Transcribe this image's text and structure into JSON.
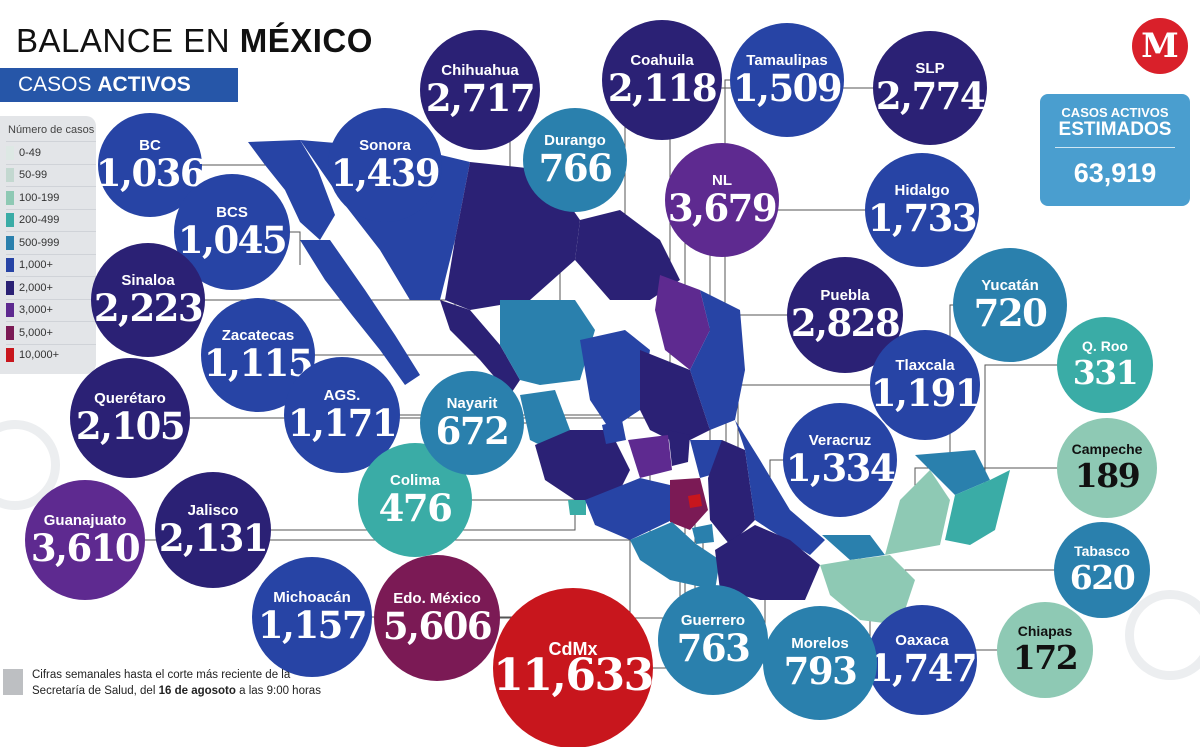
{
  "header": {
    "title_regular": "BALANCE EN ",
    "title_bold": "MÉXICO",
    "subtitle_regular": "CASOS ",
    "subtitle_bold": "ACTIVOS"
  },
  "legend": {
    "title": "Número de casos",
    "items": [
      {
        "label": "0-49",
        "color": "#dde8e4"
      },
      {
        "label": "50-99",
        "color": "#c3d8d0"
      },
      {
        "label": "100-199",
        "color": "#8ec9b4"
      },
      {
        "label": "200-499",
        "color": "#3aaca6"
      },
      {
        "label": "500-999",
        "color": "#2a80ad"
      },
      {
        "label": "1,000+",
        "color": "#2744a5"
      },
      {
        "label": "2,000+",
        "color": "#2b2175"
      },
      {
        "label": "3,000+",
        "color": "#5e2a90"
      },
      {
        "label": "5,000+",
        "color": "#7b1a55"
      },
      {
        "label": "10,000+",
        "color": "#c8161d"
      }
    ]
  },
  "logo": {
    "letter": "M",
    "color": "#d9202a"
  },
  "estimate": {
    "label_line1": "CASOS ACTIVOS",
    "label_line2": "ESTIMADOS",
    "value": "63,919",
    "color": "#4a9ecf"
  },
  "states": [
    {
      "name": "BC",
      "value": "1,036",
      "color": "#2744a5"
    },
    {
      "name": "BCS",
      "value": "1,045",
      "color": "#2744a5"
    },
    {
      "name": "Sinaloa",
      "value": "2,223",
      "color": "#2b2175"
    },
    {
      "name": "Zacatecas",
      "value": "1,115",
      "color": "#2744a5"
    },
    {
      "name": "AGS.",
      "value": "1,171",
      "color": "#2744a5"
    },
    {
      "name": "Querétaro",
      "value": "2,105",
      "color": "#2b2175"
    },
    {
      "name": "Guanajuato",
      "value": "3,610",
      "color": "#5e2a90"
    },
    {
      "name": "Jalisco",
      "value": "2,131",
      "color": "#2b2175"
    },
    {
      "name": "Michoacán",
      "value": "1,157",
      "color": "#2744a5"
    },
    {
      "name": "Edo. México",
      "value": "5,606",
      "color": "#7b1a55"
    },
    {
      "name": "CdMx",
      "value": "11,633",
      "color": "#c8161d"
    },
    {
      "name": "Colima",
      "value": "476",
      "color": "#3aaca6"
    },
    {
      "name": "Nayarit",
      "value": "672",
      "color": "#2a80ad"
    },
    {
      "name": "Sonora",
      "value": "1,439",
      "color": "#2744a5"
    },
    {
      "name": "Chihuahua",
      "value": "2,717",
      "color": "#2b2175"
    },
    {
      "name": "Durango",
      "value": "766",
      "color": "#2a80ad"
    },
    {
      "name": "Coahuila",
      "value": "2,118",
      "color": "#2b2175"
    },
    {
      "name": "NL",
      "value": "3,679",
      "color": "#5e2a90"
    },
    {
      "name": "Tamaulipas",
      "value": "1,509",
      "color": "#2744a5"
    },
    {
      "name": "SLP",
      "value": "2,774",
      "color": "#2b2175"
    },
    {
      "name": "Hidalgo",
      "value": "1,733",
      "color": "#2744a5"
    },
    {
      "name": "Puebla",
      "value": "2,828",
      "color": "#2b2175"
    },
    {
      "name": "Tlaxcala",
      "value": "1,191",
      "color": "#2744a5"
    },
    {
      "name": "Yucatán",
      "value": "720",
      "color": "#2a80ad"
    },
    {
      "name": "Q. Roo",
      "value": "331",
      "color": "#3aaca6"
    },
    {
      "name": "Campeche",
      "value": "189",
      "color": "#8ec9b4"
    },
    {
      "name": "Veracruz",
      "value": "1,334",
      "color": "#2744a5"
    },
    {
      "name": "Tabasco",
      "value": "620",
      "color": "#2a80ad"
    },
    {
      "name": "Chiapas",
      "value": "172",
      "color": "#8ec9b4"
    },
    {
      "name": "Oaxaca",
      "value": "1,747",
      "color": "#2744a5"
    },
    {
      "name": "Morelos",
      "value": "793",
      "color": "#2a80ad"
    },
    {
      "name": "Guerrero",
      "value": "763",
      "color": "#2a80ad"
    }
  ],
  "note": {
    "line1": "Cifras semanales hasta el corte más reciente de la",
    "line2_start": "Secretaría de Salud, del ",
    "line2_bold": "16 de agosoto",
    "line2_end": " a las 9:00 horas"
  }
}
